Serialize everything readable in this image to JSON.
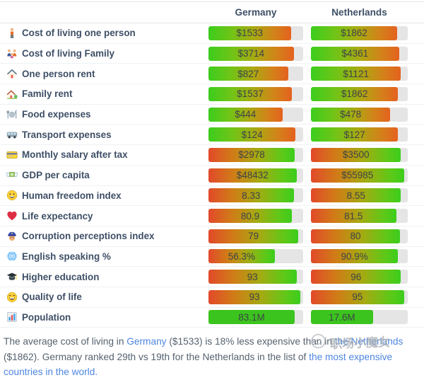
{
  "table": {
    "columns": [
      "Germany",
      "Netherlands"
    ],
    "rows": [
      {
        "icon": "person-standing-icon",
        "label": "Cost of living one person",
        "style": "asc",
        "values": [
          {
            "text": "$1533",
            "fill": 87
          },
          {
            "text": "$1862",
            "fill": 89
          }
        ]
      },
      {
        "icon": "family-icon",
        "label": "Cost of living Family",
        "style": "asc",
        "values": [
          {
            "text": "$3714",
            "fill": 90
          },
          {
            "text": "$4361",
            "fill": 91
          }
        ]
      },
      {
        "icon": "house-icon",
        "label": "One person rent",
        "style": "asc",
        "values": [
          {
            "text": "$827",
            "fill": 84
          },
          {
            "text": "$1121",
            "fill": 93
          }
        ]
      },
      {
        "icon": "house-garden-icon",
        "label": "Family rent",
        "style": "asc",
        "values": [
          {
            "text": "$1537",
            "fill": 88
          },
          {
            "text": "$1862",
            "fill": 90
          }
        ]
      },
      {
        "icon": "plate-cutlery-icon",
        "label": "Food expenses",
        "style": "asc",
        "values": [
          {
            "text": "$444",
            "fill": 78
          },
          {
            "text": "$478",
            "fill": 82
          }
        ]
      },
      {
        "icon": "van-icon",
        "label": "Transport expenses",
        "style": "asc",
        "values": [
          {
            "text": "$124",
            "fill": 92
          },
          {
            "text": "$127",
            "fill": 90
          }
        ]
      },
      {
        "icon": "credit-card-icon",
        "label": "Monthly salary after tax",
        "style": "desc",
        "values": [
          {
            "text": "$2978",
            "fill": 91
          },
          {
            "text": "$3500",
            "fill": 93
          }
        ]
      },
      {
        "icon": "money-wings-icon",
        "label": "GDP per capita",
        "style": "desc",
        "values": [
          {
            "text": "$48432",
            "fill": 93
          },
          {
            "text": "$55985",
            "fill": 96
          }
        ]
      },
      {
        "icon": "smiley-icon",
        "label": "Human freedom index",
        "style": "desc",
        "values": [
          {
            "text": "8.33",
            "fill": 90
          },
          {
            "text": "8.55",
            "fill": 93
          }
        ]
      },
      {
        "icon": "heart-icon",
        "label": "Life expectancy",
        "style": "desc",
        "values": [
          {
            "text": "80.9",
            "fill": 88
          },
          {
            "text": "81.5",
            "fill": 88
          }
        ]
      },
      {
        "icon": "police-officer-icon",
        "label": "Corruption perceptions index",
        "style": "desc",
        "values": [
          {
            "text": "79",
            "fill": 95
          },
          {
            "text": "80",
            "fill": 92
          }
        ]
      },
      {
        "icon": "globe-icon",
        "label": "English speaking %",
        "style": "desc",
        "values": [
          {
            "text": "56.3%",
            "fill": 70
          },
          {
            "text": "90.9%",
            "fill": 90
          }
        ]
      },
      {
        "icon": "graduation-cap-icon",
        "label": "Higher education",
        "style": "desc",
        "values": [
          {
            "text": "93",
            "fill": 93
          },
          {
            "text": "96",
            "fill": 93
          }
        ]
      },
      {
        "icon": "grin-icon",
        "label": "Quality of life",
        "style": "desc",
        "values": [
          {
            "text": "93",
            "fill": 97
          },
          {
            "text": "95",
            "fill": 96
          }
        ]
      },
      {
        "icon": "bar-chart-icon",
        "label": "Population",
        "style": "solid",
        "values": [
          {
            "text": "83.1M",
            "fill": 91
          },
          {
            "text": "17.6M",
            "fill": 64
          }
        ]
      }
    ]
  },
  "footer": {
    "segments": [
      {
        "text": "The average cost of living in ",
        "link": false
      },
      {
        "text": "Germany",
        "link": true
      },
      {
        "text": " ($1533) is 18% less expensive than in ",
        "link": false
      },
      {
        "text": "the Netherlands",
        "link": true
      },
      {
        "text": " ($1862). Germany ranked 29th vs 19th for the Netherlands in the list of ",
        "link": false
      },
      {
        "text": "the most expensive countries in the world.",
        "link": true
      }
    ]
  },
  "watermark": {
    "text": "职场小魔女"
  },
  "colors": {
    "bar_green": "#3ccd1d",
    "bar_orange": "#e4611f",
    "bar_red": "#e2492a",
    "solid_green": "#3bc41d",
    "track_gray": "#e5e5e5",
    "label_text": "#3e4f66",
    "value_text": "#3e4347",
    "footer_text": "#55626f",
    "link_blue": "#4e86e0"
  }
}
